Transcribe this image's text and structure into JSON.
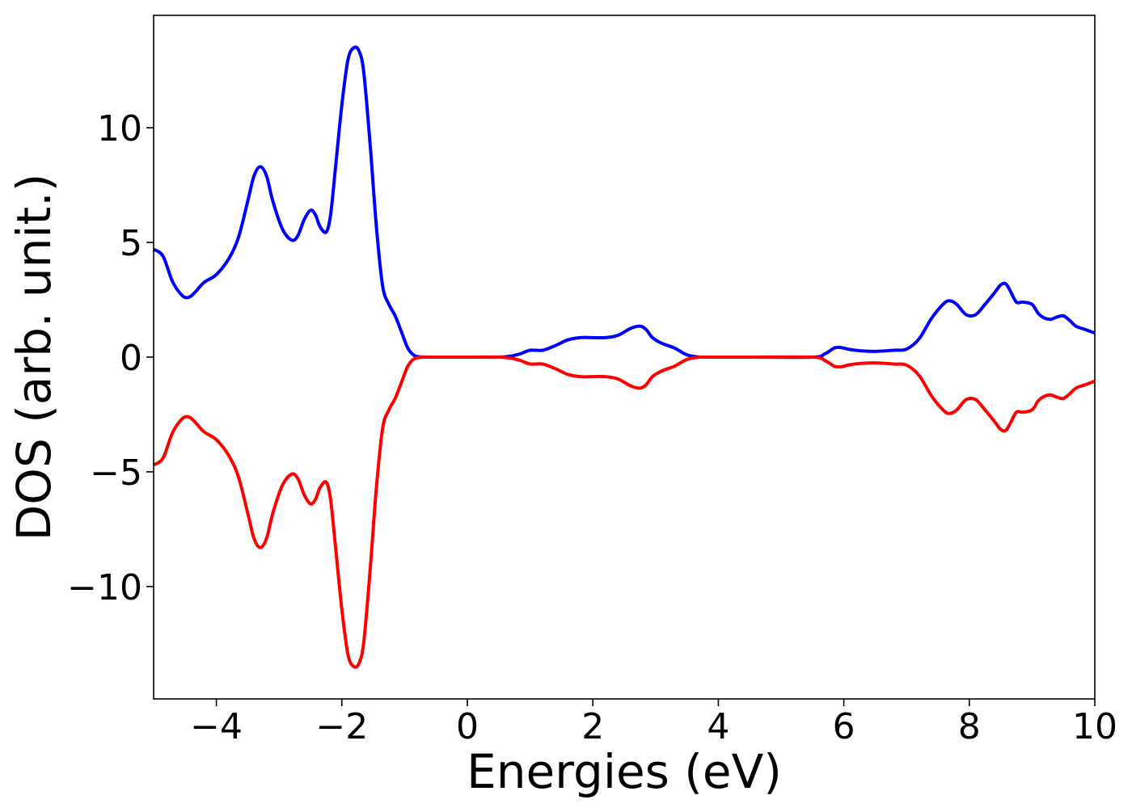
{
  "chart_data": {
    "type": "line",
    "title": "",
    "xlabel": "Energies (eV)",
    "ylabel": "DOS (arb. unit.)",
    "xlim": [
      -5,
      10
    ],
    "ylim": [
      -14.9,
      14.9
    ],
    "xticks": [
      -4,
      -2,
      0,
      2,
      4,
      6,
      8,
      10
    ],
    "xtick_labels": [
      "−4",
      "−2",
      "0",
      "2",
      "4",
      "6",
      "8",
      "10"
    ],
    "yticks": [
      10,
      5,
      0,
      -5,
      -10
    ],
    "ytick_labels": [
      "10",
      "5",
      "0",
      "−5",
      "−10"
    ],
    "grid": false,
    "legend": null,
    "series": [
      {
        "color": "#0000ff",
        "x": [
          -5.0,
          -4.85,
          -4.7,
          -4.55,
          -4.45,
          -4.35,
          -4.2,
          -4.0,
          -3.8,
          -3.65,
          -3.5,
          -3.4,
          -3.3,
          -3.2,
          -3.1,
          -2.95,
          -2.8,
          -2.7,
          -2.6,
          -2.5,
          -2.42,
          -2.35,
          -2.25,
          -2.18,
          -2.1,
          -2.0,
          -1.9,
          -1.8,
          -1.72,
          -1.65,
          -1.55,
          -1.45,
          -1.35,
          -1.25,
          -1.15,
          -1.05,
          -0.95,
          -0.85,
          -0.75,
          -0.65,
          -0.5,
          0.0,
          0.5,
          0.7,
          0.85,
          1.0,
          1.2,
          1.4,
          1.6,
          1.8,
          2.0,
          2.2,
          2.4,
          2.6,
          2.75,
          2.85,
          2.95,
          3.1,
          3.3,
          3.5,
          3.7,
          3.8,
          4.5,
          5.5,
          5.7,
          5.85,
          5.95,
          6.1,
          6.3,
          6.5,
          6.8,
          7.0,
          7.2,
          7.4,
          7.6,
          7.7,
          7.8,
          7.95,
          8.1,
          8.25,
          8.4,
          8.5,
          8.58,
          8.65,
          8.75,
          8.85,
          9.0,
          9.1,
          9.2,
          9.3,
          9.4,
          9.5,
          9.6,
          9.7,
          9.85,
          10.0
        ],
        "y": [
          4.7,
          4.4,
          3.3,
          2.7,
          2.6,
          2.8,
          3.25,
          3.6,
          4.3,
          5.2,
          6.8,
          7.9,
          8.3,
          7.9,
          6.8,
          5.6,
          5.1,
          5.3,
          6.0,
          6.4,
          6.2,
          5.7,
          5.45,
          6.2,
          8.3,
          11.0,
          13.0,
          13.5,
          13.3,
          12.4,
          9.3,
          5.7,
          3.1,
          2.3,
          1.8,
          1.1,
          0.4,
          0.08,
          0.01,
          0.0,
          0.0,
          0.0,
          0.0,
          0.05,
          0.15,
          0.3,
          0.3,
          0.5,
          0.75,
          0.85,
          0.85,
          0.85,
          0.95,
          1.25,
          1.35,
          1.2,
          0.85,
          0.6,
          0.4,
          0.1,
          0.0,
          0.0,
          0.0,
          0.0,
          0.15,
          0.4,
          0.42,
          0.33,
          0.27,
          0.25,
          0.3,
          0.35,
          0.8,
          1.7,
          2.35,
          2.45,
          2.3,
          1.85,
          1.85,
          2.3,
          2.8,
          3.15,
          3.2,
          2.9,
          2.4,
          2.4,
          2.3,
          1.9,
          1.7,
          1.65,
          1.75,
          1.8,
          1.6,
          1.35,
          1.2,
          1.05
        ]
      },
      {
        "color": "#ff0000",
        "x": [
          -5.0,
          -4.85,
          -4.7,
          -4.55,
          -4.45,
          -4.35,
          -4.2,
          -4.0,
          -3.8,
          -3.65,
          -3.5,
          -3.4,
          -3.3,
          -3.2,
          -3.1,
          -2.95,
          -2.8,
          -2.7,
          -2.6,
          -2.5,
          -2.42,
          -2.35,
          -2.25,
          -2.18,
          -2.1,
          -2.0,
          -1.9,
          -1.8,
          -1.72,
          -1.65,
          -1.55,
          -1.45,
          -1.35,
          -1.25,
          -1.15,
          -1.05,
          -0.95,
          -0.85,
          -0.75,
          -0.65,
          -0.5,
          0.0,
          0.5,
          0.7,
          0.85,
          1.0,
          1.2,
          1.4,
          1.6,
          1.8,
          2.0,
          2.2,
          2.4,
          2.6,
          2.75,
          2.85,
          2.95,
          3.1,
          3.3,
          3.5,
          3.7,
          3.8,
          4.5,
          5.5,
          5.7,
          5.85,
          5.95,
          6.1,
          6.3,
          6.5,
          6.8,
          7.0,
          7.2,
          7.4,
          7.6,
          7.7,
          7.8,
          7.95,
          8.1,
          8.25,
          8.4,
          8.5,
          8.58,
          8.65,
          8.75,
          8.85,
          9.0,
          9.1,
          9.2,
          9.3,
          9.4,
          9.5,
          9.6,
          9.7,
          9.85,
          10.0
        ],
        "y": [
          -4.7,
          -4.4,
          -3.3,
          -2.7,
          -2.6,
          -2.8,
          -3.25,
          -3.6,
          -4.3,
          -5.2,
          -6.8,
          -7.9,
          -8.3,
          -7.9,
          -6.8,
          -5.6,
          -5.1,
          -5.3,
          -6.0,
          -6.4,
          -6.2,
          -5.7,
          -5.45,
          -6.2,
          -8.3,
          -11.0,
          -13.0,
          -13.5,
          -13.3,
          -12.4,
          -9.3,
          -5.7,
          -3.1,
          -2.3,
          -1.8,
          -1.1,
          -0.4,
          -0.08,
          -0.01,
          0.0,
          0.0,
          0.0,
          0.0,
          -0.05,
          -0.15,
          -0.3,
          -0.3,
          -0.5,
          -0.75,
          -0.85,
          -0.85,
          -0.85,
          -0.95,
          -1.25,
          -1.35,
          -1.2,
          -0.85,
          -0.6,
          -0.4,
          -0.1,
          0.0,
          0.0,
          0.0,
          0.0,
          -0.15,
          -0.4,
          -0.42,
          -0.33,
          -0.27,
          -0.25,
          -0.3,
          -0.35,
          -0.8,
          -1.7,
          -2.35,
          -2.45,
          -2.3,
          -1.85,
          -1.85,
          -2.3,
          -2.8,
          -3.15,
          -3.2,
          -2.9,
          -2.4,
          -2.4,
          -2.3,
          -1.9,
          -1.7,
          -1.65,
          -1.75,
          -1.8,
          -1.6,
          -1.35,
          -1.2,
          -1.05
        ]
      }
    ]
  }
}
